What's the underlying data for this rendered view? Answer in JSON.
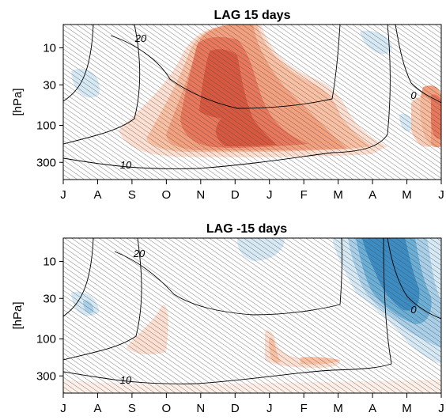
{
  "chart_data": [
    {
      "type": "heatmap",
      "title": "LAG 15 days",
      "ylabel": "[hPa]",
      "x_ticks": [
        "J",
        "A",
        "S",
        "O",
        "N",
        "D",
        "J",
        "F",
        "M",
        "A",
        "M",
        "J"
      ],
      "y_ticks": [
        10,
        30,
        100,
        300
      ],
      "y_scale": "log",
      "ylim": [
        500,
        5
      ],
      "hatching": "significance",
      "contour_labels": [
        {
          "text": "20",
          "month": 1.8,
          "p": 9
        },
        {
          "text": "10",
          "month": 2.7,
          "p": 320
        },
        {
          "text": "0",
          "month": 10.5,
          "p": 40
        }
      ],
      "colors": {
        "pos1": "#fde0d2",
        "pos2": "#f9c0a4",
        "pos3": "#f3a07f",
        "pos4": "#e8775b",
        "pos5": "#d8583f",
        "neg1": "#d6e9f4",
        "neg2": "#a9d0e8",
        "neg3": "#6baed6",
        "neg4": "#3c8cc4"
      }
    },
    {
      "type": "heatmap",
      "title": "LAG -15 days",
      "ylabel": "[hPa]",
      "x_ticks": [
        "J",
        "A",
        "S",
        "O",
        "N",
        "D",
        "J",
        "F",
        "M",
        "A",
        "M",
        "J"
      ],
      "y_ticks": [
        10,
        30,
        100,
        300
      ],
      "y_scale": "log",
      "ylim": [
        500,
        5
      ],
      "hatching": "significance",
      "contour_labels": [
        {
          "text": "20",
          "month": 2.2,
          "p": 8
        },
        {
          "text": "10",
          "month": 1.8,
          "p": 330
        },
        {
          "text": "0",
          "month": 10.4,
          "p": 50
        }
      ],
      "colors": {
        "pos1": "#fde0d2",
        "pos2": "#f9c0a4",
        "pos3": "#f3a07f",
        "pos4": "#e8775b",
        "pos5": "#d8583f",
        "neg1": "#d6e9f4",
        "neg2": "#a9d0e8",
        "neg3": "#6baed6",
        "neg4": "#3c8cc4"
      }
    }
  ]
}
